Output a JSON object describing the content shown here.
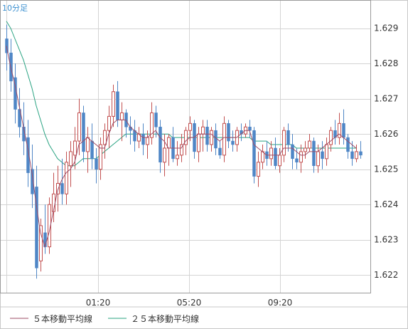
{
  "chart_data": {
    "type": "candlestick",
    "period_label": "10分足",
    "x_tick_labels": [
      "01:20",
      "05:20",
      "09:20"
    ],
    "ylim": [
      1.6215,
      1.6298
    ],
    "y_ticks": [
      1.622,
      1.623,
      1.624,
      1.625,
      1.626,
      1.627,
      1.628,
      1.629
    ],
    "y_tick_labels": [
      "1.622",
      "1.623",
      "1.624",
      "1.625",
      "1.626",
      "1.627",
      "1.628",
      "1.629"
    ],
    "grid": true,
    "colors": {
      "up": "#c25050",
      "down": "#4f86c6",
      "ma5": "#9e4c66",
      "ma25": "#2aa382",
      "grid": "#d4d4d4",
      "axis": "#9a9a9a"
    },
    "legend": [
      {
        "label": "５本移動平均線",
        "color": "#9e4c66"
      },
      {
        "label": "２５本移動平均線",
        "color": "#2aa382"
      }
    ],
    "candles": [
      [
        1.6287,
        1.6291,
        1.6278,
        1.6283
      ],
      [
        1.6283,
        1.6287,
        1.6272,
        1.6275
      ],
      [
        1.6276,
        1.628,
        1.6263,
        1.6267
      ],
      [
        1.6267,
        1.6273,
        1.6259,
        1.6262
      ],
      [
        1.6262,
        1.6269,
        1.6254,
        1.6258
      ],
      [
        1.6259,
        1.6264,
        1.6245,
        1.6249
      ],
      [
        1.625,
        1.6257,
        1.6239,
        1.6243
      ],
      [
        1.6245,
        1.6251,
        1.6219,
        1.6222
      ],
      [
        1.6224,
        1.6236,
        1.6221,
        1.6234
      ],
      [
        1.6232,
        1.624,
        1.6226,
        1.6228
      ],
      [
        1.6228,
        1.6242,
        1.6226,
        1.624
      ],
      [
        1.6238,
        1.6249,
        1.6235,
        1.6243
      ],
      [
        1.6243,
        1.6251,
        1.6238,
        1.6246
      ],
      [
        1.6246,
        1.6253,
        1.624,
        1.6243
      ],
      [
        1.6243,
        1.6255,
        1.624,
        1.6252
      ],
      [
        1.6251,
        1.6258,
        1.6245,
        1.6255
      ],
      [
        1.6254,
        1.6262,
        1.625,
        1.6258
      ],
      [
        1.6258,
        1.627,
        1.6254,
        1.6266
      ],
      [
        1.6266,
        1.6268,
        1.6252,
        1.6255
      ],
      [
        1.6255,
        1.6262,
        1.6249,
        1.6259
      ],
      [
        1.6258,
        1.6263,
        1.625,
        1.6253
      ],
      [
        1.6253,
        1.6256,
        1.6246,
        1.625
      ],
      [
        1.625,
        1.6259,
        1.6247,
        1.6257
      ],
      [
        1.6257,
        1.6263,
        1.6253,
        1.6261
      ],
      [
        1.6261,
        1.6268,
        1.6256,
        1.6265
      ],
      [
        1.6265,
        1.6274,
        1.6262,
        1.6272
      ],
      [
        1.6272,
        1.6275,
        1.6262,
        1.6264
      ],
      [
        1.6264,
        1.6269,
        1.6258,
        1.6266
      ],
      [
        1.6266,
        1.6267,
        1.6259,
        1.6262
      ],
      [
        1.6262,
        1.6265,
        1.6257,
        1.6261
      ],
      [
        1.6261,
        1.6264,
        1.6255,
        1.6258
      ],
      [
        1.6258,
        1.6262,
        1.6256,
        1.626
      ],
      [
        1.626,
        1.6263,
        1.6254,
        1.6257
      ],
      [
        1.6257,
        1.6261,
        1.6253,
        1.6259
      ],
      [
        1.6259,
        1.6269,
        1.6257,
        1.6266
      ],
      [
        1.6266,
        1.6268,
        1.6259,
        1.6262
      ],
      [
        1.6262,
        1.6264,
        1.6249,
        1.6252
      ],
      [
        1.6252,
        1.626,
        1.6248,
        1.6256
      ],
      [
        1.6256,
        1.626,
        1.6251,
        1.6259
      ],
      [
        1.6259,
        1.6262,
        1.6252,
        1.6253
      ],
      [
        1.6253,
        1.6258,
        1.6251,
        1.6254
      ],
      [
        1.6254,
        1.626,
        1.6252,
        1.6257
      ],
      [
        1.6257,
        1.6262,
        1.6254,
        1.6261
      ],
      [
        1.6261,
        1.6265,
        1.6258,
        1.6263
      ],
      [
        1.6263,
        1.6264,
        1.6253,
        1.6255
      ],
      [
        1.6255,
        1.6262,
        1.6252,
        1.626
      ],
      [
        1.626,
        1.6264,
        1.6255,
        1.6262
      ],
      [
        1.6262,
        1.6264,
        1.6255,
        1.6257
      ],
      [
        1.6257,
        1.6262,
        1.6255,
        1.6261
      ],
      [
        1.6261,
        1.6263,
        1.6254,
        1.6256
      ],
      [
        1.6256,
        1.6258,
        1.6253,
        1.6254
      ],
      [
        1.6254,
        1.6265,
        1.6252,
        1.6263
      ],
      [
        1.6263,
        1.6264,
        1.6256,
        1.6258
      ],
      [
        1.6258,
        1.6261,
        1.6255,
        1.6257
      ],
      [
        1.6257,
        1.6262,
        1.6255,
        1.6261
      ],
      [
        1.6261,
        1.6263,
        1.6258,
        1.626
      ],
      [
        1.626,
        1.6263,
        1.6259,
        1.6262
      ],
      [
        1.6262,
        1.6264,
        1.6259,
        1.6261
      ],
      [
        1.6261,
        1.6262,
        1.6246,
        1.6248
      ],
      [
        1.6248,
        1.6255,
        1.6245,
        1.6252
      ],
      [
        1.6252,
        1.6257,
        1.625,
        1.6255
      ],
      [
        1.6255,
        1.6258,
        1.6251,
        1.6253
      ],
      [
        1.6253,
        1.6258,
        1.6251,
        1.6256
      ],
      [
        1.6256,
        1.6259,
        1.625,
        1.6251
      ],
      [
        1.6251,
        1.6256,
        1.6249,
        1.6254
      ],
      [
        1.6254,
        1.6262,
        1.6252,
        1.6261
      ],
      [
        1.6261,
        1.6263,
        1.6255,
        1.6257
      ],
      [
        1.6257,
        1.626,
        1.625,
        1.6253
      ],
      [
        1.6253,
        1.6256,
        1.625,
        1.6252
      ],
      [
        1.6252,
        1.6257,
        1.6249,
        1.6255
      ],
      [
        1.6255,
        1.6258,
        1.6253,
        1.6256
      ],
      [
        1.6256,
        1.626,
        1.6255,
        1.6258
      ],
      [
        1.6258,
        1.6259,
        1.6249,
        1.6251
      ],
      [
        1.6251,
        1.6257,
        1.6249,
        1.6255
      ],
      [
        1.6255,
        1.6258,
        1.625,
        1.6253
      ],
      [
        1.6253,
        1.6259,
        1.6251,
        1.6257
      ],
      [
        1.6257,
        1.6262,
        1.6255,
        1.6261
      ],
      [
        1.6261,
        1.6264,
        1.6257,
        1.6259
      ],
      [
        1.6259,
        1.6266,
        1.6257,
        1.6263
      ],
      [
        1.6263,
        1.6267,
        1.6257,
        1.6259
      ],
      [
        1.6259,
        1.626,
        1.6253,
        1.6255
      ],
      [
        1.6255,
        1.6258,
        1.6251,
        1.6253
      ],
      [
        1.6253,
        1.6257,
        1.6252,
        1.6255
      ],
      [
        1.6255,
        1.6258,
        1.6253,
        1.6254
      ]
    ],
    "ma5": [
      1.6285,
      1.6279,
      1.6274,
      1.6268,
      1.6262,
      1.6256,
      1.6249,
      1.624,
      1.6232,
      1.6228,
      1.6232,
      1.6238,
      1.6244,
      1.6247,
      1.6249,
      1.625,
      1.6252,
      1.6257,
      1.6258,
      1.6259,
      1.6258,
      1.6257,
      1.6256,
      1.6256,
      1.626,
      1.6263,
      1.6264,
      1.6264,
      1.6264,
      1.6262,
      1.6261,
      1.626,
      1.6259,
      1.6259,
      1.626,
      1.6261,
      1.6259,
      1.6258,
      1.6256,
      1.6256,
      1.6256,
      1.6256,
      1.6258,
      1.6259,
      1.6259,
      1.626,
      1.626,
      1.626,
      1.626,
      1.6259,
      1.6258,
      1.6259,
      1.6259,
      1.6259,
      1.6259,
      1.626,
      1.6261,
      1.6261,
      1.6257,
      1.6256,
      1.6255,
      1.6254,
      1.6254,
      1.6254,
      1.6254,
      1.6256,
      1.6256,
      1.6256,
      1.6255,
      1.6254,
      1.6254,
      1.6255,
      1.6255,
      1.6255,
      1.6256,
      1.6257,
      1.6258,
      1.6259,
      1.626,
      1.6259,
      1.6258,
      1.6257,
      1.6256
    ],
    "ma25": [
      1.6292,
      1.629,
      1.6287,
      1.6284,
      1.6281,
      1.6277,
      1.6273,
      1.6268,
      1.6264,
      1.626,
      1.6257,
      1.6255,
      1.6253,
      1.6252,
      1.6251,
      1.6251,
      1.6251,
      1.6252,
      1.6253,
      1.6253,
      1.6253,
      1.6253,
      1.6254,
      1.6255,
      1.6256,
      1.6257,
      1.6258,
      1.6259,
      1.626,
      1.626,
      1.626,
      1.626,
      1.626,
      1.626,
      1.626,
      1.626,
      1.626,
      1.626,
      1.626,
      1.6259,
      1.6259,
      1.6259,
      1.6259,
      1.6259,
      1.6259,
      1.6259,
      1.6259,
      1.6259,
      1.6259,
      1.6259,
      1.6259,
      1.6259,
      1.6259,
      1.6259,
      1.6259,
      1.6259,
      1.6259,
      1.6259,
      1.6258,
      1.6258,
      1.6258,
      1.6258,
      1.6257,
      1.6257,
      1.6257,
      1.6257,
      1.6257,
      1.6257,
      1.6256,
      1.6256,
      1.6256,
      1.6256,
      1.6256,
      1.6256,
      1.6256,
      1.6256,
      1.6256,
      1.6256,
      1.6256,
      1.6256,
      1.6256,
      1.6256,
      1.6256
    ]
  }
}
